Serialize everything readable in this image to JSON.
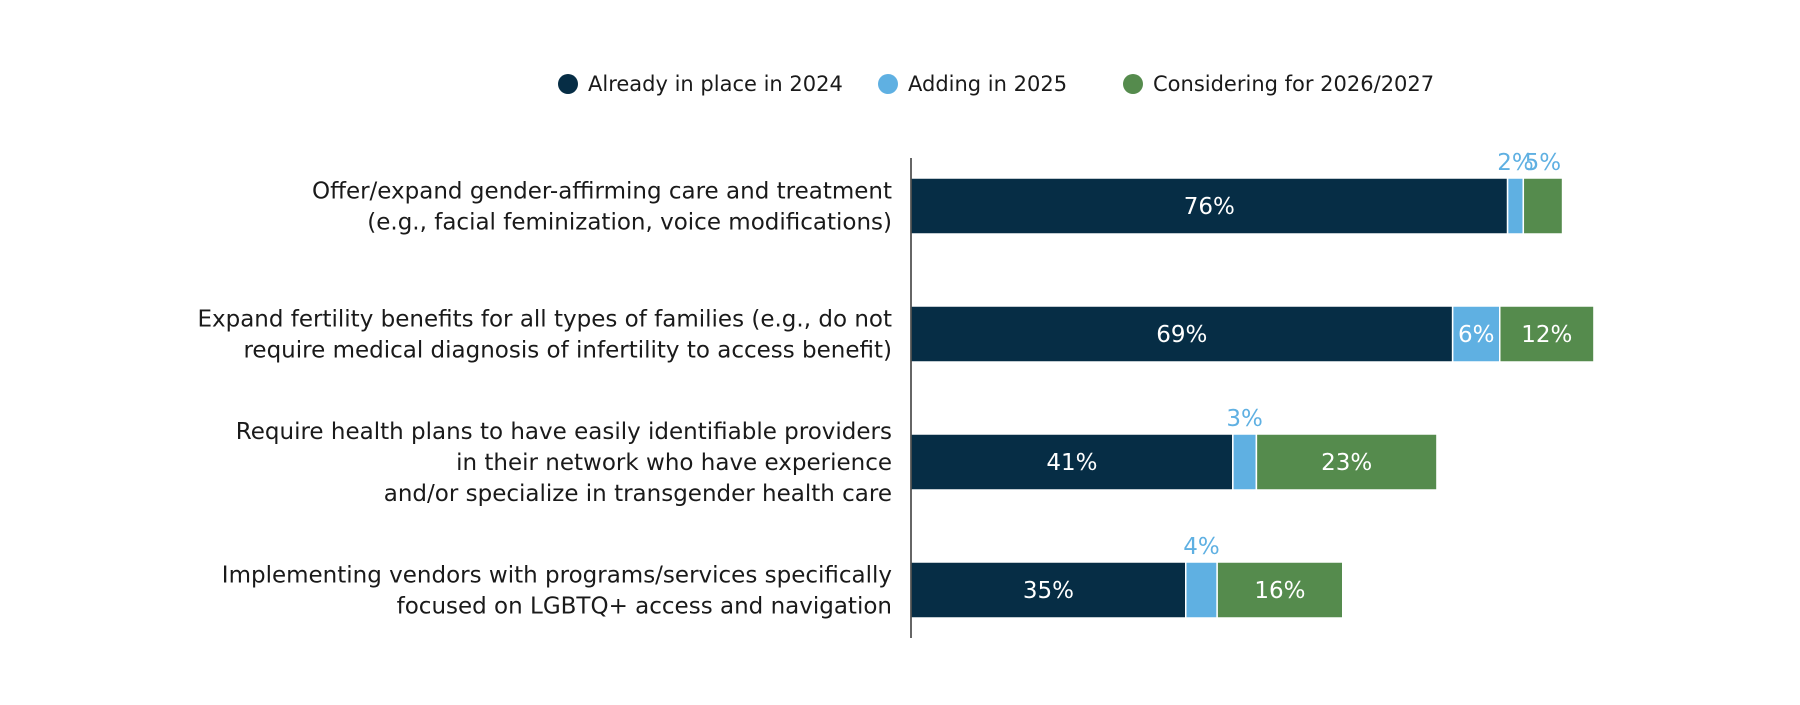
{
  "colors": {
    "already": "#062d45",
    "adding": "#5fb0e2",
    "considering": "#558b4d",
    "axis": "#333333",
    "label_text": "#1a1a1a",
    "inner_text": "#ffffff",
    "outside_text": "#5fb0e2"
  },
  "legend": [
    {
      "label": "Already in place in 2024",
      "color": "#062d45"
    },
    {
      "label": "Adding in 2025",
      "color": "#5fb0e2"
    },
    {
      "label": "Considering for 2026/2027",
      "color": "#558b4d"
    }
  ],
  "chart_data": {
    "type": "bar",
    "orientation": "horizontal",
    "stacked": true,
    "categories": [
      [
        "Offer/expand gender-affirming care and treatment",
        "(e.g., facial feminization, voice modifications)"
      ],
      [
        "Expand fertility benefits for all types of families (e.g., do not",
        "require medical diagnosis of infertility to access benefit)"
      ],
      [
        "Require health plans to have easily identifiable providers",
        "in their network who have experience",
        "and/or specialize in transgender health care"
      ],
      [
        "Implementing vendors with programs/services specifically",
        "focused on LGBTQ+ access and navigation"
      ]
    ],
    "series": [
      {
        "name": "Already in place in 2024",
        "values": [
          76,
          69,
          41,
          35
        ],
        "labels": [
          "76%",
          "69%",
          "41%",
          "35%"
        ]
      },
      {
        "name": "Adding in 2025",
        "values": [
          2,
          6,
          3,
          4
        ],
        "labels": [
          "2%",
          "6%",
          "3%",
          "4%"
        ]
      },
      {
        "name": "Considering for 2026/2027",
        "values": [
          5,
          12,
          23,
          16
        ],
        "labels": [
          "5%",
          "12%",
          "23%",
          "16%"
        ]
      }
    ],
    "xlim": [
      0,
      100
    ],
    "grid": false,
    "legend_position": "top-center"
  }
}
